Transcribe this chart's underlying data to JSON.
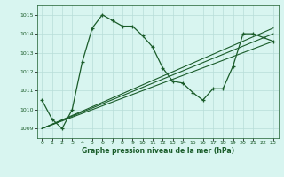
{
  "xlabel": "Graphe pression niveau de la mer (hPa)",
  "bg_color": "#d8f5f0",
  "grid_color": "#b8ddd8",
  "line_color": "#1a5c2a",
  "ylim": [
    1008.5,
    1015.5
  ],
  "xlim": [
    -0.5,
    23.5
  ],
  "yticks": [
    1009,
    1010,
    1011,
    1012,
    1013,
    1014,
    1015
  ],
  "xticks": [
    0,
    1,
    2,
    3,
    4,
    5,
    6,
    7,
    8,
    9,
    10,
    11,
    12,
    13,
    14,
    15,
    16,
    17,
    18,
    19,
    20,
    21,
    22,
    23
  ],
  "series1_x": [
    0,
    1,
    2,
    3,
    4,
    5,
    6,
    7,
    8,
    9,
    10,
    11,
    12,
    13,
    14,
    15,
    16,
    17,
    18,
    19,
    20,
    21,
    22,
    23
  ],
  "series1_y": [
    1010.5,
    1009.5,
    1009.0,
    1010.0,
    1012.5,
    1014.3,
    1015.0,
    1014.7,
    1014.4,
    1014.4,
    1013.9,
    1013.3,
    1012.2,
    1011.5,
    1011.4,
    1010.9,
    1010.5,
    1011.1,
    1011.1,
    1012.3,
    1014.0,
    1014.0,
    1013.8,
    1013.6
  ],
  "line2_x": [
    0,
    23
  ],
  "line2_y": [
    1009.0,
    1013.6
  ],
  "line3_x": [
    0,
    23
  ],
  "line3_y": [
    1009.0,
    1014.0
  ],
  "line4_x": [
    0,
    23
  ],
  "line4_y": [
    1009.0,
    1014.3
  ]
}
